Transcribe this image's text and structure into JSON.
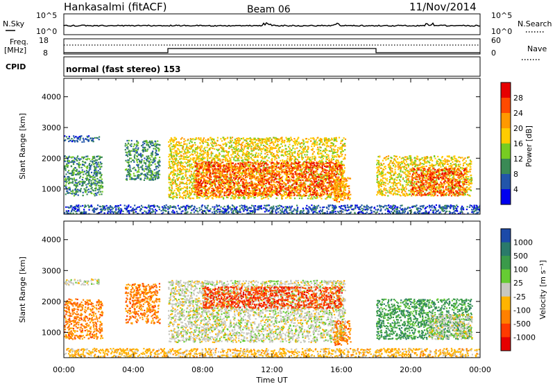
{
  "header": {
    "station": "Hankasalmi (fitACF)",
    "beam": "Beam 06",
    "date": "11/Nov/2014"
  },
  "panels": {
    "nsky": {
      "left_label": "N.Sky",
      "right_label": "N.Search",
      "left_ticks": [
        "10^5",
        "10^0"
      ],
      "right_ticks": [
        "10^5",
        "10^0"
      ]
    },
    "freq": {
      "left_label_1": "Freq.",
      "left_label_2": "[MHz]",
      "left_ticks": [
        "18",
        "8"
      ],
      "right_ticks": [
        "60",
        "0"
      ],
      "right_label": "Nave"
    },
    "cpid": {
      "label": "CPID",
      "text": "normal (fast stereo) 153"
    }
  },
  "power_colorbar": {
    "label": "Power [dB]",
    "ticks": [
      "28",
      "24",
      "20",
      "16",
      "12",
      "8",
      "4"
    ],
    "colors": [
      "#e60000",
      "#ff4a00",
      "#ff9900",
      "#ffcc00",
      "#77cc22",
      "#3a8a55",
      "#2255aa",
      "#0000ee"
    ]
  },
  "velocity_colorbar": {
    "label": "Velocity [m s⁻¹]",
    "ticks": [
      "1000",
      "500",
      "100",
      "25",
      "-25",
      "-100",
      "-500",
      "-1000"
    ],
    "colors": [
      "#1c4aa8",
      "#2a7a6a",
      "#3a9a4a",
      "#66cc33",
      "#c8c8c0",
      "#ffb400",
      "#ff8000",
      "#ff3a00",
      "#e60000"
    ]
  },
  "x_axis": {
    "label": "Time UT",
    "ticks": [
      "00:00",
      "04:00",
      "08:00",
      "12:00",
      "16:00",
      "20:00",
      "00:00"
    ]
  },
  "chart_data": [
    {
      "type": "heatmap",
      "title": "Power",
      "ylabel": "Slant Range [km]",
      "xlabel": "Time UT",
      "yticks": [
        "1000",
        "2000",
        "3000",
        "4000"
      ],
      "ylim": [
        180,
        4600
      ],
      "xlim_hours": [
        0,
        24
      ],
      "colorbar_label": "Power [dB]",
      "regions": [
        {
          "t0": 0.0,
          "t1": 2.2,
          "r0": 800,
          "r1": 2100,
          "level": 2
        },
        {
          "t0": 0.0,
          "t1": 2.0,
          "r0": 2550,
          "r1": 2750,
          "level": 1
        },
        {
          "t0": 3.5,
          "t1": 5.5,
          "r0": 1300,
          "r1": 2600,
          "level": 2
        },
        {
          "t0": 6.0,
          "t1": 16.2,
          "r0": 700,
          "r1": 2700,
          "level": 4
        },
        {
          "t0": 7.5,
          "t1": 16.0,
          "r0": 800,
          "r1": 1900,
          "level": 6
        },
        {
          "t0": 15.5,
          "t1": 16.5,
          "r0": 600,
          "r1": 1400,
          "level": 5
        },
        {
          "t0": 18.0,
          "t1": 23.5,
          "r0": 800,
          "r1": 2100,
          "level": 4
        },
        {
          "t0": 20.0,
          "t1": 23.2,
          "r0": 800,
          "r1": 1700,
          "level": 6
        },
        {
          "t0": 0.0,
          "t1": 24.0,
          "r0": 180,
          "r1": 500,
          "level": 1
        }
      ]
    },
    {
      "type": "heatmap",
      "title": "Velocity",
      "ylabel": "Slant Range [km]",
      "xlabel": "Time UT",
      "yticks": [
        "1000",
        "2000",
        "3000",
        "4000"
      ],
      "ylim": [
        180,
        4600
      ],
      "xlim_hours": [
        0,
        24
      ],
      "colorbar_label": "Velocity [m s⁻¹]",
      "regions": [
        {
          "t0": 0.0,
          "t1": 2.2,
          "r0": 800,
          "r1": 2100,
          "color_index": 6
        },
        {
          "t0": 0.0,
          "t1": 2.0,
          "r0": 2550,
          "r1": 2750,
          "color_index": 4
        },
        {
          "t0": 3.5,
          "t1": 5.5,
          "r0": 1300,
          "r1": 2600,
          "color_index": 6
        },
        {
          "t0": 6.0,
          "t1": 16.2,
          "r0": 700,
          "r1": 2700,
          "color_index": 4
        },
        {
          "t0": 8.0,
          "t1": 16.0,
          "r0": 1800,
          "r1": 2500,
          "color_index": 7
        },
        {
          "t0": 15.5,
          "t1": 16.5,
          "r0": 600,
          "r1": 1400,
          "color_index": 6
        },
        {
          "t0": 18.0,
          "t1": 23.5,
          "r0": 800,
          "r1": 2100,
          "color_index": 2
        },
        {
          "t0": 21.0,
          "t1": 23.5,
          "r0": 800,
          "r1": 1600,
          "color_index": 4
        },
        {
          "t0": 0.0,
          "t1": 24.0,
          "r0": 180,
          "r1": 500,
          "color_index": 5
        }
      ]
    }
  ]
}
